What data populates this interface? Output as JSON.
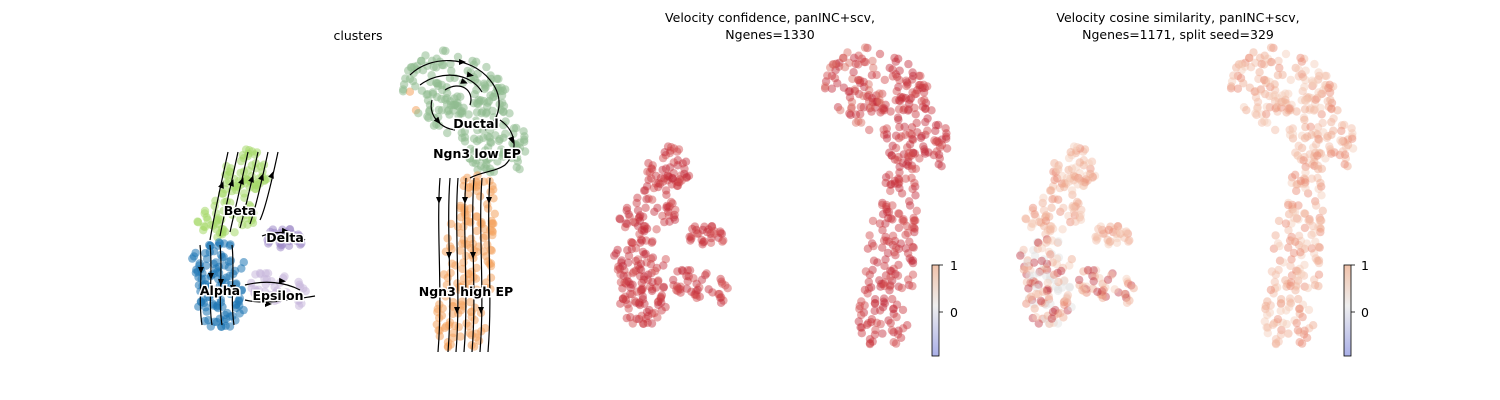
{
  "chart_data": [
    {
      "type": "scatter",
      "title": "clusters",
      "categories": [
        "Ductal",
        "Ngn3 low EP",
        "Ngn3 high EP",
        "Beta",
        "Delta",
        "Alpha",
        "Epsilon"
      ],
      "category_colors": {
        "Ductal": "#8fbc8f",
        "Ngn3 low EP": "#8fbc8f",
        "Ngn3 high EP": "#f4a460",
        "Beta": "#a6d96a",
        "Delta": "#9e8ac8",
        "Alpha": "#1f77b4",
        "Epsilon": "#c9b8dc"
      },
      "streamlines": true
    },
    {
      "type": "scatter",
      "title_lines": [
        "Velocity confidence, panINC+scv,",
        "Ngenes=1330"
      ],
      "colormap": "coolwarm",
      "colorbar": {
        "ticks": [
          1,
          0
        ]
      }
    },
    {
      "type": "scatter",
      "title_lines": [
        "Velocity cosine similarity, panINC+scv,",
        "Ngenes=1171, split seed=329"
      ],
      "colormap": "coolwarm",
      "colorbar": {
        "ticks": [
          1,
          0
        ]
      }
    }
  ],
  "colors": {
    "high": "#c8303a",
    "mid": "#e8806a",
    "light": "#f2bba5",
    "neutral": "#dddddd",
    "low": "#3b4cc0"
  }
}
